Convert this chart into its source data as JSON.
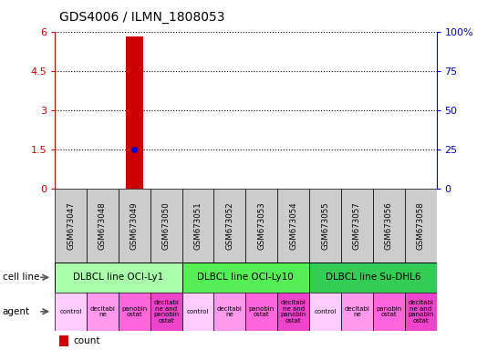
{
  "title": "GDS4006 / ILMN_1808053",
  "samples": [
    "GSM673047",
    "GSM673048",
    "GSM673049",
    "GSM673050",
    "GSM673051",
    "GSM673052",
    "GSM673053",
    "GSM673054",
    "GSM673055",
    "GSM673057",
    "GSM673056",
    "GSM673058"
  ],
  "bar_index": 2,
  "bar_value": 5.8,
  "dot_value": 1.5,
  "ylim_left": [
    0,
    6
  ],
  "ylim_right": [
    0,
    100
  ],
  "yticks_left": [
    0,
    1.5,
    3,
    4.5,
    6
  ],
  "yticks_right": [
    0,
    25,
    50,
    75,
    100
  ],
  "ytick_labels_left": [
    "0",
    "1.5",
    "3",
    "4.5",
    "6"
  ],
  "ytick_labels_right": [
    "0",
    "25",
    "50",
    "75",
    "100%"
  ],
  "bar_color": "#cc0000",
  "dot_color": "#0000cc",
  "cell_lines": [
    {
      "label": "DLBCL line OCI-Ly1",
      "start": 0,
      "end": 4,
      "color": "#aaffaa"
    },
    {
      "label": "DLBCL line OCI-Ly10",
      "start": 4,
      "end": 8,
      "color": "#55ee55"
    },
    {
      "label": "DLBCL line Su-DHL6",
      "start": 8,
      "end": 12,
      "color": "#33cc55"
    }
  ],
  "agent_labels": [
    "control",
    "decitabi\nne",
    "panobin\nostat",
    "decitabi\nne and\npanobin\nostat",
    "control",
    "decitabi\nne",
    "panobin\nostat",
    "decitabi\nne and\npanobin\nostat",
    "control",
    "decitabi\nne",
    "panobin\nostat",
    "decitabi\nne and\npanobin\nostat"
  ],
  "agent_colors": [
    "#ffccff",
    "#ff99ee",
    "#ff66dd",
    "#ee44cc",
    "#ffccff",
    "#ff99ee",
    "#ff66dd",
    "#ee44cc",
    "#ffccff",
    "#ff99ee",
    "#ff66dd",
    "#ee44cc"
  ],
  "sample_bg": "#cccccc",
  "legend_count_color": "#cc0000",
  "legend_dot_color": "#0000cc"
}
